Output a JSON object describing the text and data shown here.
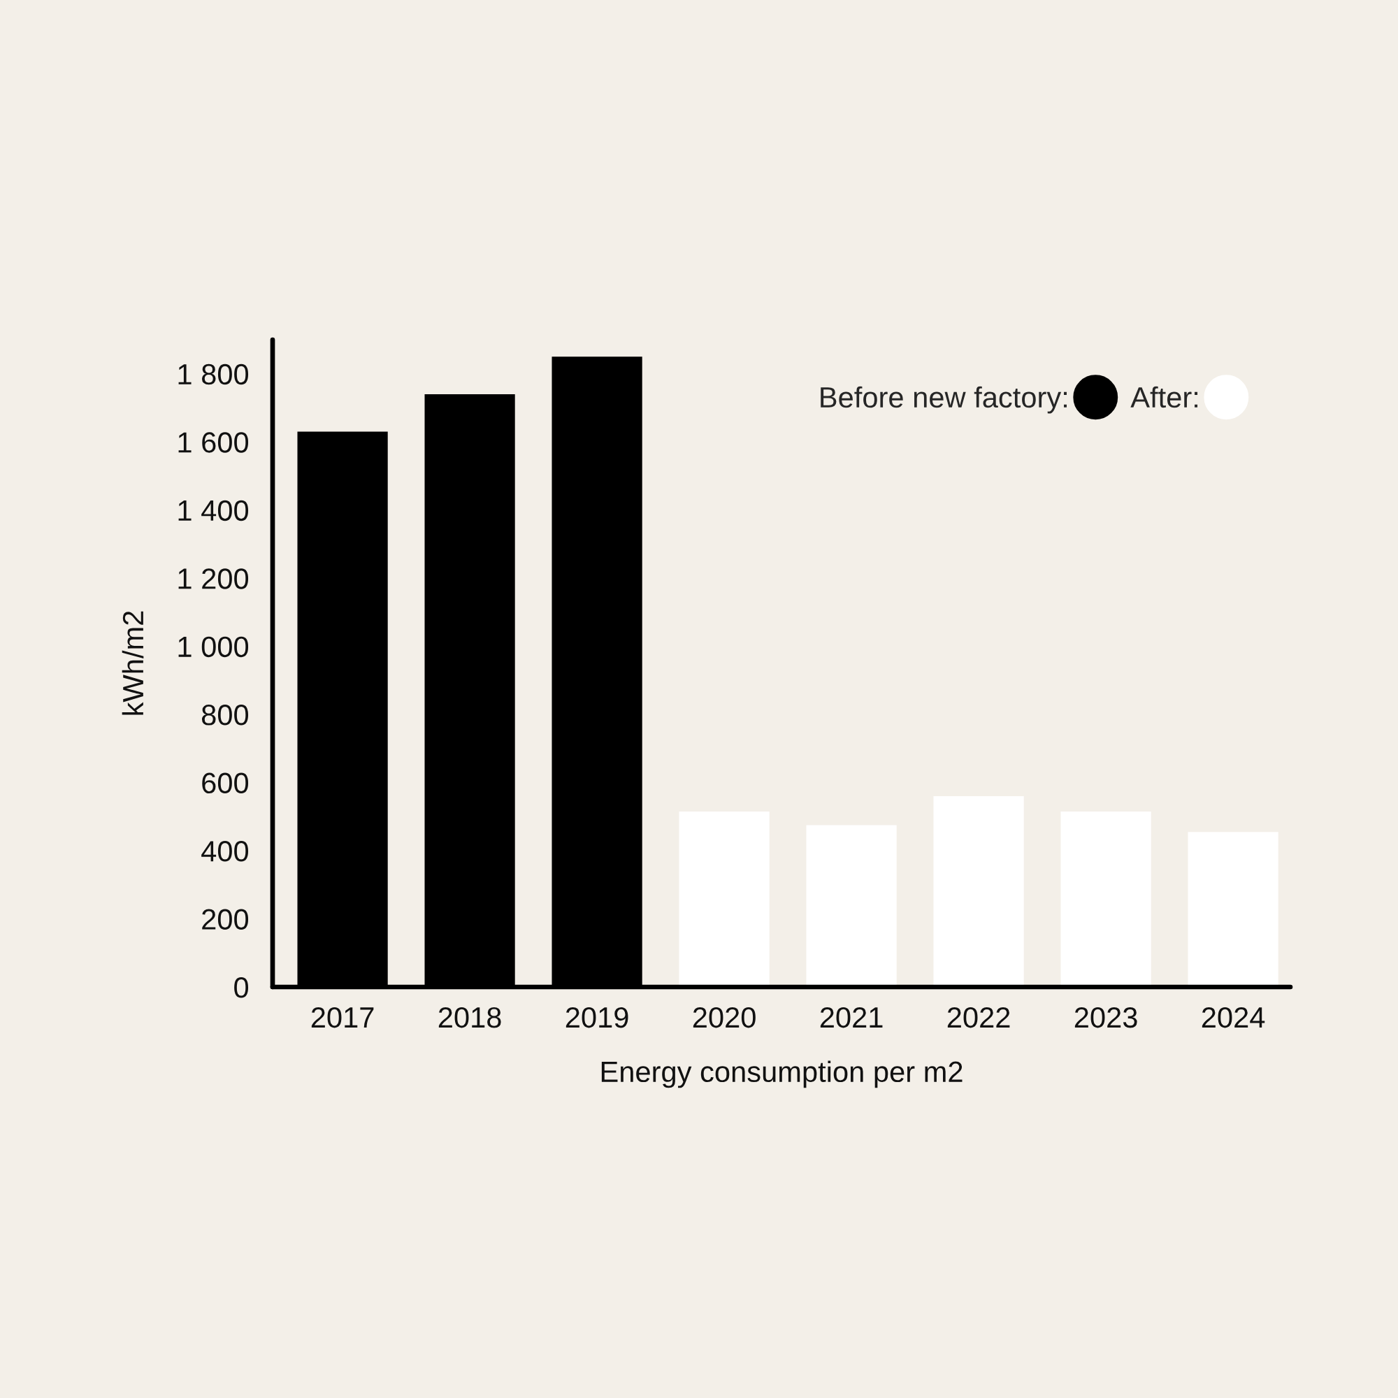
{
  "chart_data": {
    "type": "bar",
    "xlabel": "Energy consumption per m2",
    "ylabel": "kWh/m2",
    "categories": [
      "2017",
      "2018",
      "2019",
      "2020",
      "2021",
      "2022",
      "2023",
      "2024"
    ],
    "series": [
      {
        "name": "Before new factory:",
        "color": "#000000",
        "values": [
          1630,
          1740,
          1850,
          null,
          null,
          null,
          null,
          null
        ]
      },
      {
        "name": "After:",
        "color": "#ffffff",
        "values": [
          null,
          null,
          null,
          515,
          475,
          560,
          515,
          455
        ]
      }
    ],
    "stacked": true,
    "ylim": [
      0,
      1900
    ],
    "yticks": [
      0,
      200,
      400,
      600,
      800,
      {
        "value": 1000,
        "label": "1 000"
      },
      {
        "value": 1200,
        "label": "1 200"
      },
      {
        "value": 1400,
        "label": "1 400"
      },
      {
        "value": 1600,
        "label": "1 600"
      },
      {
        "value": 1800,
        "label": "1 800"
      }
    ],
    "grid": false,
    "legend": "top right"
  }
}
